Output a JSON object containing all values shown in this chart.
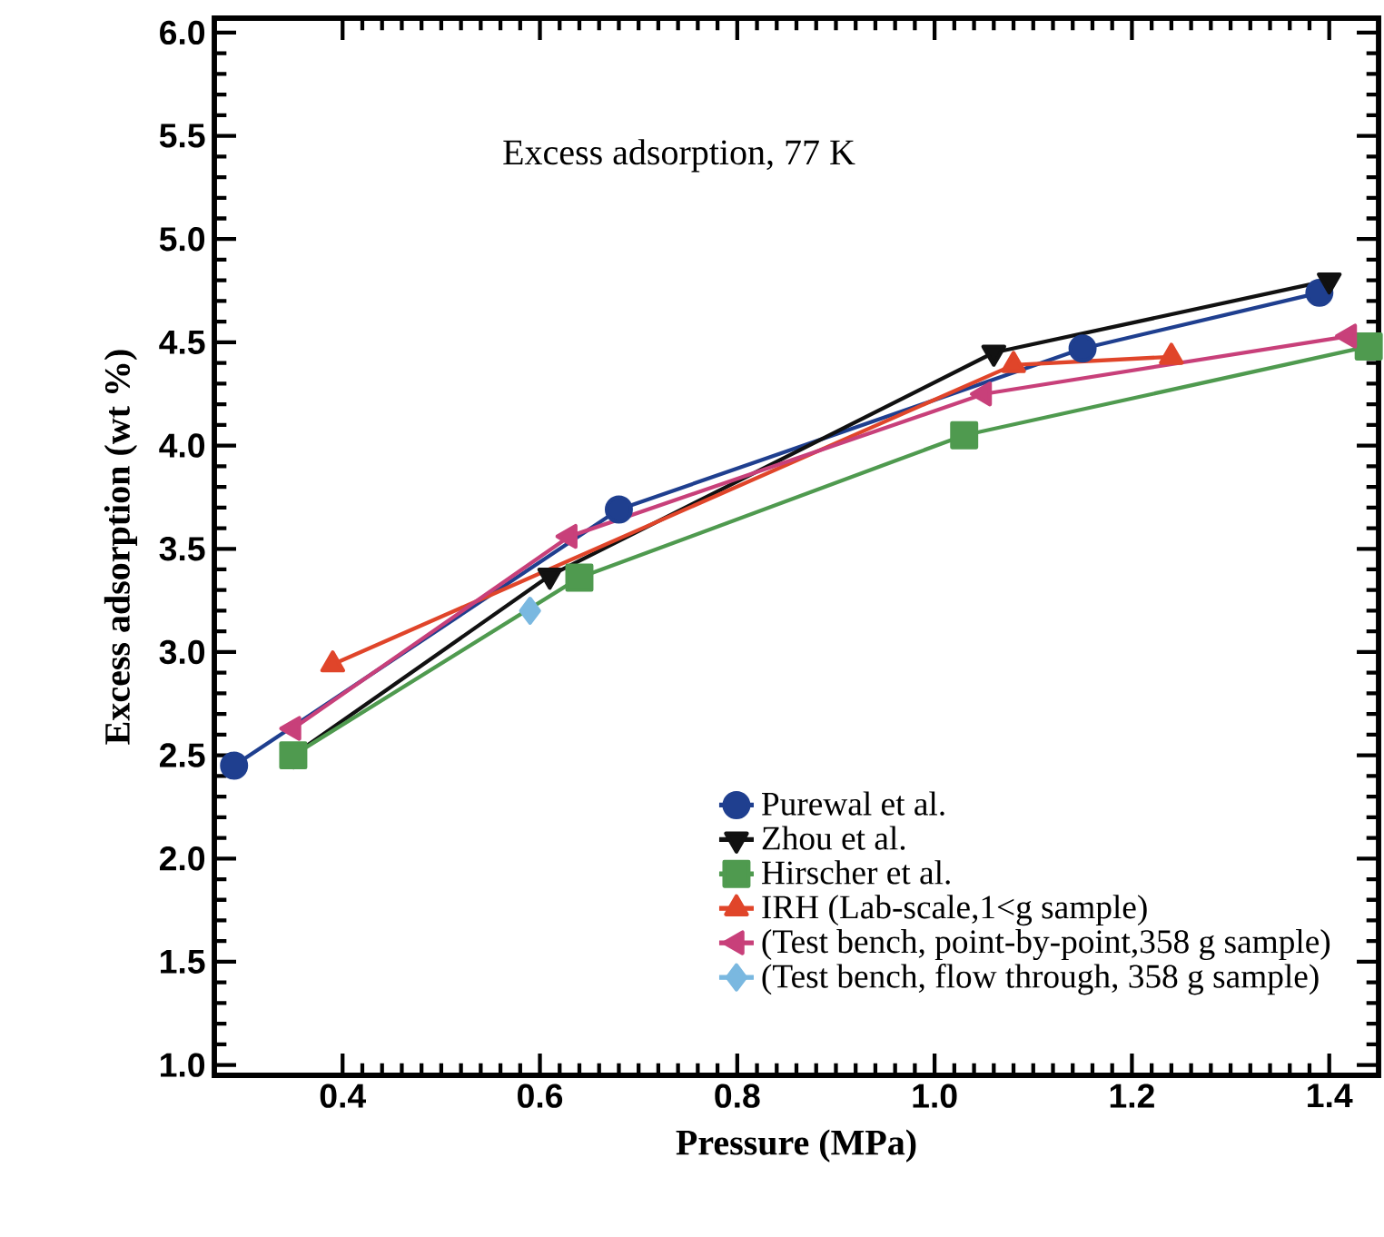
{
  "chart_data": {
    "type": "line",
    "xlabel": "Pressure (MPa)",
    "ylabel": "Excess adsorption (wt %)",
    "annotations": [
      "Excess adsorption, 77 K"
    ],
    "xlim": [
      0.27,
      1.45
    ],
    "xticks": [
      0.4,
      0.6,
      0.8,
      {
        "value": 1,
        "label": "1.0"
      },
      1.2,
      1.4
    ],
    "ylim": [
      0.95,
      6.07
    ],
    "yticks": [
      {
        "value": 1,
        "label": "1.0"
      },
      1.5,
      {
        "value": 2,
        "label": "2.0"
      },
      2.5,
      {
        "value": 3,
        "label": "3.0"
      },
      3.5,
      {
        "value": 4,
        "label": "4.0"
      },
      4.5,
      {
        "value": 5,
        "label": "5.0"
      },
      5.5,
      {
        "value": 6,
        "label": "6.0"
      }
    ],
    "legend": "bottom right",
    "grid": false,
    "series": [
      {
        "name": "Purewal et al.",
        "color": "#1f3f8f",
        "marker": "circle",
        "x": [
          0.29,
          0.68,
          1.15,
          1.39
        ],
        "values": [
          2.45,
          3.69,
          4.47,
          4.74
        ]
      },
      {
        "name": "Zhou et al.",
        "color": "#111111",
        "marker": "triangle-down",
        "x": [
          0.35,
          0.61,
          1.06,
          1.4
        ],
        "values": [
          2.5,
          3.37,
          4.45,
          4.8
        ]
      },
      {
        "name": "Hirscher et al.",
        "color": "#4f9a4f",
        "marker": "square",
        "x": [
          0.35,
          0.64,
          1.03,
          1.44
        ],
        "values": [
          2.5,
          3.36,
          4.05,
          4.48
        ]
      },
      {
        "name": "IRH (Lab-scale,1<g sample)",
        "color": "#e0452a",
        "marker": "triangle",
        "x": [
          0.39,
          1.08,
          1.24
        ],
        "values": [
          2.94,
          4.39,
          4.43
        ]
      },
      {
        "name": "(Test bench, point-by-point,358 g sample)",
        "color": "#c8407a",
        "marker": "triangle-left",
        "x": [
          0.35,
          0.63,
          1.05,
          1.42
        ],
        "values": [
          2.63,
          3.56,
          4.25,
          4.53
        ]
      },
      {
        "name": "(Test bench, flow through, 358 g sample)",
        "color": "#7ab8e0",
        "marker": "diamond",
        "x": [
          0.59
        ],
        "values": [
          3.2
        ]
      }
    ]
  }
}
